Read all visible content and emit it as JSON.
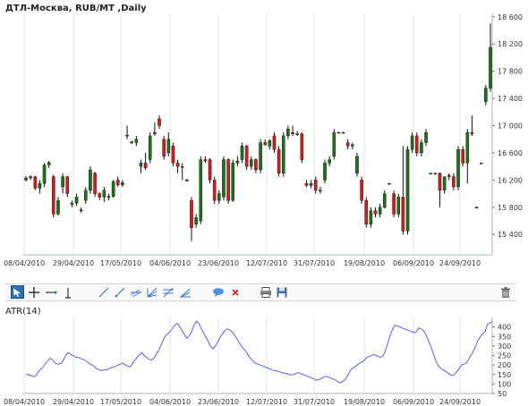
{
  "colors": {
    "up": "#1f6f1f",
    "down": "#cc1f1f",
    "wick": "#111111",
    "grid": "#dfe7ee",
    "atr_line": "#6a6de0",
    "accent": "#2f6fb3"
  },
  "toolbar": {
    "icons": [
      "cursor-arrow-icon",
      "crosshair-icon",
      "horizontal-line-icon",
      "vertical-line-icon",
      "trend-line-icon",
      "ray-line-icon",
      "parallel-channel-icon",
      "fan-lines-icon",
      "fibonacci-icon",
      "text-balloon-icon",
      "delete-object-icon",
      "print-icon",
      "save-disk-icon",
      "trash-icon"
    ]
  },
  "chart_data": [
    {
      "type": "candlestick",
      "title": "ДТЛ-Москва,  RUB/MT ,Daily",
      "ylim": [
        15100,
        18650
      ],
      "y_ticks": [
        "15 400",
        "15 800",
        "16 200",
        "16 600",
        "17 000",
        "17 400",
        "17 800",
        "18 200",
        "18 600"
      ],
      "x_ticks": [
        "08/04/2010",
        "29/04/2010",
        "17/05/2010",
        "04/06/2010",
        "23/06/2010",
        "12/07/2010",
        "31/07/2010",
        "19/08/2010",
        "06/09/2010",
        "24/09/2010"
      ],
      "grid": "vertical",
      "candles": [
        {
          "o": 16200,
          "h": 16260,
          "l": 16180,
          "c": 16230
        },
        {
          "o": 16230,
          "h": 16270,
          "l": 16200,
          "c": 16250
        },
        {
          "o": 16250,
          "h": 16260,
          "l": 16050,
          "c": 16080
        },
        {
          "o": 16080,
          "h": 16200,
          "l": 16000,
          "c": 16150
        },
        {
          "o": 16150,
          "h": 16450,
          "l": 16100,
          "c": 16420
        },
        {
          "o": 16420,
          "h": 16480,
          "l": 16380,
          "c": 16460
        },
        {
          "o": 16250,
          "h": 16280,
          "l": 15650,
          "c": 15700
        },
        {
          "o": 15700,
          "h": 15950,
          "l": 15680,
          "c": 15900
        },
        {
          "o": 16100,
          "h": 16300,
          "l": 16000,
          "c": 16250
        },
        {
          "o": 16250,
          "h": 16260,
          "l": 15950,
          "c": 16000
        },
        {
          "o": 15850,
          "h": 15900,
          "l": 15800,
          "c": 15860
        },
        {
          "o": 15860,
          "h": 16000,
          "l": 15820,
          "c": 15950
        },
        {
          "o": 15750,
          "h": 15800,
          "l": 15720,
          "c": 15760
        },
        {
          "o": 15900,
          "h": 16100,
          "l": 15850,
          "c": 16050
        },
        {
          "o": 16050,
          "h": 16400,
          "l": 16000,
          "c": 16350
        },
        {
          "o": 16300,
          "h": 16320,
          "l": 15950,
          "c": 16000
        },
        {
          "o": 16000,
          "h": 16020,
          "l": 15900,
          "c": 15950
        },
        {
          "o": 15950,
          "h": 16100,
          "l": 15880,
          "c": 16050
        },
        {
          "o": 15950,
          "h": 16000,
          "l": 15900,
          "c": 15960
        },
        {
          "o": 15960,
          "h": 16200,
          "l": 15940,
          "c": 16180
        },
        {
          "o": 16200,
          "h": 16250,
          "l": 16100,
          "c": 16130
        },
        {
          "o": 16130,
          "h": 16200,
          "l": 16100,
          "c": 16160
        },
        {
          "o": 16850,
          "h": 17000,
          "l": 16800,
          "c": 16860
        },
        {
          "o": 16760,
          "h": 16780,
          "l": 16730,
          "c": 16750
        },
        {
          "o": 16750,
          "h": 16850,
          "l": 16700,
          "c": 16800
        },
        {
          "o": 16400,
          "h": 16500,
          "l": 16300,
          "c": 16450
        },
        {
          "o": 16450,
          "h": 16600,
          "l": 16350,
          "c": 16380
        },
        {
          "o": 16500,
          "h": 16900,
          "l": 16450,
          "c": 16850
        },
        {
          "o": 16900,
          "h": 17050,
          "l": 16850,
          "c": 16880
        },
        {
          "o": 17100,
          "h": 17150,
          "l": 16950,
          "c": 17000
        },
        {
          "o": 16800,
          "h": 16850,
          "l": 16500,
          "c": 16550
        },
        {
          "o": 16600,
          "h": 16900,
          "l": 16550,
          "c": 16800
        },
        {
          "o": 16700,
          "h": 16750,
          "l": 16400,
          "c": 16450
        },
        {
          "o": 16450,
          "h": 16500,
          "l": 16300,
          "c": 16400
        },
        {
          "o": 16400,
          "h": 16450,
          "l": 16200,
          "c": 16400
        },
        {
          "o": 16200,
          "h": 16220,
          "l": 16180,
          "c": 16200
        },
        {
          "o": 15900,
          "h": 15950,
          "l": 15300,
          "c": 15500
        },
        {
          "o": 15550,
          "h": 15700,
          "l": 15500,
          "c": 15650
        },
        {
          "o": 15600,
          "h": 16550,
          "l": 15550,
          "c": 16500
        },
        {
          "o": 16500,
          "h": 16550,
          "l": 16450,
          "c": 16480
        },
        {
          "o": 16500,
          "h": 16520,
          "l": 16150,
          "c": 16200
        },
        {
          "o": 16200,
          "h": 16250,
          "l": 15850,
          "c": 15900
        },
        {
          "o": 15900,
          "h": 16050,
          "l": 15850,
          "c": 16000
        },
        {
          "o": 15950,
          "h": 16550,
          "l": 15900,
          "c": 16500
        },
        {
          "o": 16500,
          "h": 16520,
          "l": 15850,
          "c": 15900
        },
        {
          "o": 15900,
          "h": 16500,
          "l": 15880,
          "c": 16450
        },
        {
          "o": 16450,
          "h": 16550,
          "l": 16400,
          "c": 16480
        },
        {
          "o": 16500,
          "h": 16750,
          "l": 16450,
          "c": 16700
        },
        {
          "o": 16700,
          "h": 16720,
          "l": 16350,
          "c": 16400
        },
        {
          "o": 16400,
          "h": 16550,
          "l": 16350,
          "c": 16500
        },
        {
          "o": 16500,
          "h": 16520,
          "l": 16300,
          "c": 16350
        },
        {
          "o": 16350,
          "h": 16800,
          "l": 16300,
          "c": 16750
        },
        {
          "o": 16750,
          "h": 16800,
          "l": 16700,
          "c": 16720
        },
        {
          "o": 16700,
          "h": 16800,
          "l": 16650,
          "c": 16780
        },
        {
          "o": 16850,
          "h": 16900,
          "l": 16600,
          "c": 16650
        },
        {
          "o": 16650,
          "h": 16700,
          "l": 16250,
          "c": 16300
        },
        {
          "o": 16300,
          "h": 16900,
          "l": 16250,
          "c": 16850
        },
        {
          "o": 16850,
          "h": 17000,
          "l": 16800,
          "c": 16950
        },
        {
          "o": 16900,
          "h": 17000,
          "l": 16850,
          "c": 16880
        },
        {
          "o": 16880,
          "h": 16920,
          "l": 16850,
          "c": 16880
        },
        {
          "o": 16880,
          "h": 16900,
          "l": 16450,
          "c": 16500
        },
        {
          "o": 16150,
          "h": 16200,
          "l": 16100,
          "c": 16120
        },
        {
          "o": 16120,
          "h": 16200,
          "l": 16080,
          "c": 16150
        },
        {
          "o": 16200,
          "h": 16250,
          "l": 16000,
          "c": 16050
        },
        {
          "o": 16050,
          "h": 16100,
          "l": 16000,
          "c": 16050
        },
        {
          "o": 16200,
          "h": 16500,
          "l": 16150,
          "c": 16450
        },
        {
          "o": 16450,
          "h": 16550,
          "l": 16400,
          "c": 16500
        },
        {
          "o": 16550,
          "h": 16950,
          "l": 16500,
          "c": 16900
        },
        {
          "o": 16900,
          "h": 16910,
          "l": 16890,
          "c": 16900
        },
        {
          "o": 16900,
          "h": 16910,
          "l": 16890,
          "c": 16900
        },
        {
          "o": 16750,
          "h": 16800,
          "l": 16650,
          "c": 16700
        },
        {
          "o": 16700,
          "h": 16750,
          "l": 16650,
          "c": 16720
        },
        {
          "o": 16300,
          "h": 16600,
          "l": 16250,
          "c": 16550
        },
        {
          "o": 16200,
          "h": 16250,
          "l": 15850,
          "c": 15900
        },
        {
          "o": 15900,
          "h": 15950,
          "l": 15500,
          "c": 15550
        },
        {
          "o": 15550,
          "h": 15800,
          "l": 15500,
          "c": 15750
        },
        {
          "o": 15750,
          "h": 15800,
          "l": 15650,
          "c": 15700
        },
        {
          "o": 15700,
          "h": 15850,
          "l": 15650,
          "c": 15800
        },
        {
          "o": 15800,
          "h": 16050,
          "l": 15780,
          "c": 16000
        },
        {
          "o": 16150,
          "h": 16160,
          "l": 16140,
          "c": 16150
        },
        {
          "o": 16000,
          "h": 16050,
          "l": 15650,
          "c": 15700
        },
        {
          "o": 15700,
          "h": 16000,
          "l": 15650,
          "c": 15950
        },
        {
          "o": 15950,
          "h": 16700,
          "l": 15400,
          "c": 15450
        },
        {
          "o": 15450,
          "h": 16700,
          "l": 15400,
          "c": 16650
        },
        {
          "o": 16650,
          "h": 16900,
          "l": 16600,
          "c": 16850
        },
        {
          "o": 16850,
          "h": 16900,
          "l": 16550,
          "c": 16600
        },
        {
          "o": 16600,
          "h": 16800,
          "l": 16550,
          "c": 16750
        },
        {
          "o": 16750,
          "h": 16950,
          "l": 16700,
          "c": 16900
        },
        {
          "o": 16300,
          "h": 16310,
          "l": 16290,
          "c": 16300
        },
        {
          "o": 16300,
          "h": 16310,
          "l": 16290,
          "c": 16300
        },
        {
          "o": 16300,
          "h": 16310,
          "l": 15800,
          "c": 16050
        },
        {
          "o": 16050,
          "h": 16250,
          "l": 16000,
          "c": 16250
        },
        {
          "o": 16250,
          "h": 16300,
          "l": 16200,
          "c": 16270
        },
        {
          "o": 16250,
          "h": 16300,
          "l": 16050,
          "c": 16100
        },
        {
          "o": 16100,
          "h": 16700,
          "l": 16050,
          "c": 16650
        },
        {
          "o": 16650,
          "h": 16700,
          "l": 16400,
          "c": 16450
        },
        {
          "o": 16450,
          "h": 16950,
          "l": 16150,
          "c": 16900
        },
        {
          "o": 16900,
          "h": 17150,
          "l": 16850,
          "c": 16880
        },
        {
          "o": 15800,
          "h": 15810,
          "l": 15790,
          "c": 15800
        },
        {
          "o": 16450,
          "h": 16460,
          "l": 16440,
          "c": 16450
        },
        {
          "o": 17350,
          "h": 17600,
          "l": 17300,
          "c": 17550
        },
        {
          "o": 17550,
          "h": 18500,
          "l": 17500,
          "c": 18150
        }
      ]
    },
    {
      "type": "line",
      "title": "ATR(14)",
      "ylim": [
        50,
        450
      ],
      "y_ticks": [
        "50",
        "100",
        "150",
        "200",
        "250",
        "300",
        "350",
        "400"
      ],
      "x_ticks": [
        "08/04/2010",
        "29/04/2010",
        "17/05/2010",
        "04/06/2010",
        "23/06/2010",
        "12/07/2010",
        "31/07/2010",
        "19/08/2010",
        "06/09/2010",
        "24/09/2010"
      ],
      "values": [
        150,
        150,
        145,
        140,
        140,
        160,
        175,
        185,
        205,
        215,
        235,
        230,
        215,
        205,
        205,
        210,
        230,
        255,
        265,
        255,
        250,
        240,
        240,
        235,
        230,
        225,
        215,
        205,
        200,
        190,
        180,
        175,
        170,
        175,
        175,
        180,
        185,
        190,
        195,
        200,
        205,
        210,
        200,
        195,
        190,
        205,
        225,
        240,
        255,
        265,
        250,
        240,
        230,
        225,
        235,
        255,
        275,
        300,
        330,
        355,
        365,
        375,
        395,
        410,
        420,
        400,
        380,
        360,
        340,
        355,
        375,
        410,
        430,
        420,
        395,
        370,
        345,
        325,
        300,
        285,
        300,
        320,
        345,
        365,
        380,
        390,
        385,
        375,
        360,
        340,
        320,
        300,
        285,
        270,
        250,
        235,
        220,
        210,
        205,
        200,
        195,
        190,
        185,
        180,
        175,
        170,
        168,
        165,
        160,
        158,
        155,
        150,
        148,
        150,
        155,
        160,
        155,
        150,
        145,
        140,
        135,
        130,
        125,
        120,
        125,
        130,
        138,
        140,
        135,
        130,
        125,
        120,
        110,
        105,
        115,
        125,
        145,
        170,
        185,
        190,
        200,
        210,
        215,
        225,
        240,
        245,
        250,
        255,
        250,
        245,
        240,
        250,
        280,
        320,
        360,
        390,
        410,
        405,
        400,
        395,
        390,
        385,
        380,
        375,
        370,
        375,
        395,
        390,
        380,
        360,
        330,
        300,
        265,
        230,
        200,
        185,
        175,
        170,
        160,
        150,
        145,
        150,
        165,
        180,
        200,
        205,
        210,
        230,
        250,
        270,
        300,
        330,
        350,
        365,
        375,
        415,
        420,
        430
      ]
    }
  ]
}
